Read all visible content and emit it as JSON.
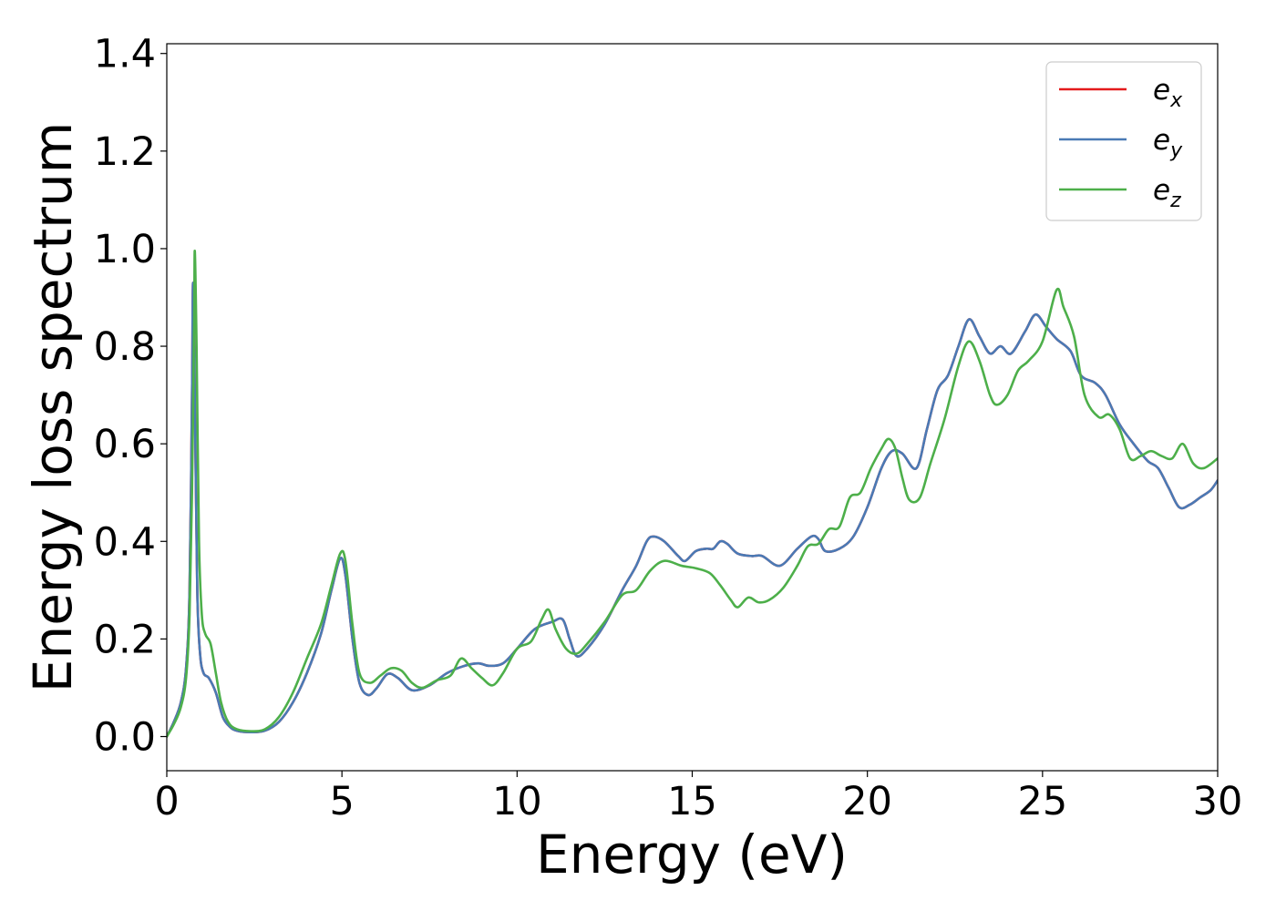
{
  "chart_data": {
    "type": "line",
    "title": "",
    "xlabel": "Energy (eV)",
    "ylabel": "Energy loss spectrum",
    "xlim": [
      0,
      30
    ],
    "ylim": [
      -0.07,
      1.42
    ],
    "x_ticks": [
      "0",
      "5",
      "10",
      "15",
      "20",
      "25",
      "30"
    ],
    "y_ticks": [
      "0.0",
      "0.2",
      "0.4",
      "0.6",
      "0.8",
      "1.0",
      "1.2",
      "1.4"
    ],
    "grid": false,
    "legend_position": "top-right",
    "series": [
      {
        "name": "e_x",
        "legend_base": "e",
        "legend_sub": "x",
        "color": "#e41a1c",
        "points": [
          [
            0,
            0.0
          ],
          [
            0.2,
            0.03
          ],
          [
            0.4,
            0.07
          ],
          [
            0.55,
            0.14
          ],
          [
            0.65,
            0.3
          ],
          [
            0.72,
            0.7
          ],
          [
            0.75,
            0.93
          ],
          [
            0.8,
            0.7
          ],
          [
            0.87,
            0.3
          ],
          [
            0.95,
            0.17
          ],
          [
            1.05,
            0.13
          ],
          [
            1.2,
            0.12
          ],
          [
            1.4,
            0.09
          ],
          [
            1.6,
            0.04
          ],
          [
            1.8,
            0.02
          ],
          [
            2.0,
            0.012
          ],
          [
            2.4,
            0.009
          ],
          [
            2.8,
            0.012
          ],
          [
            3.2,
            0.03
          ],
          [
            3.6,
            0.07
          ],
          [
            4.0,
            0.13
          ],
          [
            4.4,
            0.21
          ],
          [
            4.7,
            0.3
          ],
          [
            4.95,
            0.365
          ],
          [
            5.1,
            0.33
          ],
          [
            5.3,
            0.2
          ],
          [
            5.5,
            0.11
          ],
          [
            5.75,
            0.085
          ],
          [
            6.0,
            0.1
          ],
          [
            6.3,
            0.128
          ],
          [
            6.6,
            0.12
          ],
          [
            7.0,
            0.095
          ],
          [
            7.5,
            0.105
          ],
          [
            8.0,
            0.13
          ],
          [
            8.5,
            0.145
          ],
          [
            8.9,
            0.15
          ],
          [
            9.2,
            0.145
          ],
          [
            9.6,
            0.15
          ],
          [
            10.0,
            0.18
          ],
          [
            10.5,
            0.22
          ],
          [
            11.0,
            0.235
          ],
          [
            11.3,
            0.24
          ],
          [
            11.5,
            0.2
          ],
          [
            11.7,
            0.165
          ],
          [
            12.0,
            0.18
          ],
          [
            12.5,
            0.23
          ],
          [
            13.0,
            0.3
          ],
          [
            13.4,
            0.35
          ],
          [
            13.7,
            0.4
          ],
          [
            13.9,
            0.41
          ],
          [
            14.2,
            0.4
          ],
          [
            14.6,
            0.37
          ],
          [
            14.8,
            0.36
          ],
          [
            15.1,
            0.38
          ],
          [
            15.4,
            0.385
          ],
          [
            15.6,
            0.385
          ],
          [
            15.8,
            0.4
          ],
          [
            16.0,
            0.395
          ],
          [
            16.3,
            0.375
          ],
          [
            16.7,
            0.37
          ],
          [
            17.0,
            0.37
          ],
          [
            17.5,
            0.35
          ],
          [
            18.0,
            0.385
          ],
          [
            18.4,
            0.41
          ],
          [
            18.6,
            0.405
          ],
          [
            18.8,
            0.38
          ],
          [
            19.2,
            0.385
          ],
          [
            19.6,
            0.41
          ],
          [
            20.0,
            0.47
          ],
          [
            20.4,
            0.55
          ],
          [
            20.7,
            0.585
          ],
          [
            21.0,
            0.58
          ],
          [
            21.4,
            0.55
          ],
          [
            21.7,
            0.63
          ],
          [
            22.0,
            0.71
          ],
          [
            22.3,
            0.74
          ],
          [
            22.6,
            0.8
          ],
          [
            22.9,
            0.855
          ],
          [
            23.2,
            0.82
          ],
          [
            23.5,
            0.785
          ],
          [
            23.8,
            0.8
          ],
          [
            24.1,
            0.785
          ],
          [
            24.5,
            0.83
          ],
          [
            24.8,
            0.865
          ],
          [
            25.1,
            0.84
          ],
          [
            25.4,
            0.815
          ],
          [
            25.8,
            0.79
          ],
          [
            26.1,
            0.74
          ],
          [
            26.5,
            0.725
          ],
          [
            26.8,
            0.7
          ],
          [
            27.2,
            0.64
          ],
          [
            27.6,
            0.6
          ],
          [
            28.0,
            0.565
          ],
          [
            28.3,
            0.55
          ],
          [
            28.6,
            0.51
          ],
          [
            28.9,
            0.47
          ],
          [
            29.2,
            0.475
          ],
          [
            29.5,
            0.49
          ],
          [
            29.8,
            0.505
          ],
          [
            30.0,
            0.525
          ]
        ]
      },
      {
        "name": "e_y",
        "legend_base": "e",
        "legend_sub": "y",
        "color": "#4a7ab5",
        "points": [
          [
            0,
            0.0
          ],
          [
            0.2,
            0.03
          ],
          [
            0.4,
            0.07
          ],
          [
            0.55,
            0.14
          ],
          [
            0.65,
            0.3
          ],
          [
            0.72,
            0.7
          ],
          [
            0.75,
            0.93
          ],
          [
            0.8,
            0.7
          ],
          [
            0.87,
            0.3
          ],
          [
            0.95,
            0.17
          ],
          [
            1.05,
            0.13
          ],
          [
            1.2,
            0.12
          ],
          [
            1.4,
            0.09
          ],
          [
            1.6,
            0.04
          ],
          [
            1.8,
            0.02
          ],
          [
            2.0,
            0.012
          ],
          [
            2.4,
            0.009
          ],
          [
            2.8,
            0.012
          ],
          [
            3.2,
            0.03
          ],
          [
            3.6,
            0.07
          ],
          [
            4.0,
            0.13
          ],
          [
            4.4,
            0.21
          ],
          [
            4.7,
            0.3
          ],
          [
            4.95,
            0.365
          ],
          [
            5.1,
            0.33
          ],
          [
            5.3,
            0.2
          ],
          [
            5.5,
            0.11
          ],
          [
            5.75,
            0.085
          ],
          [
            6.0,
            0.1
          ],
          [
            6.3,
            0.128
          ],
          [
            6.6,
            0.12
          ],
          [
            7.0,
            0.095
          ],
          [
            7.5,
            0.105
          ],
          [
            8.0,
            0.13
          ],
          [
            8.5,
            0.145
          ],
          [
            8.9,
            0.15
          ],
          [
            9.2,
            0.145
          ],
          [
            9.6,
            0.15
          ],
          [
            10.0,
            0.18
          ],
          [
            10.5,
            0.22
          ],
          [
            11.0,
            0.235
          ],
          [
            11.3,
            0.24
          ],
          [
            11.5,
            0.2
          ],
          [
            11.7,
            0.165
          ],
          [
            12.0,
            0.18
          ],
          [
            12.5,
            0.23
          ],
          [
            13.0,
            0.3
          ],
          [
            13.4,
            0.35
          ],
          [
            13.7,
            0.4
          ],
          [
            13.9,
            0.41
          ],
          [
            14.2,
            0.4
          ],
          [
            14.6,
            0.37
          ],
          [
            14.8,
            0.36
          ],
          [
            15.1,
            0.38
          ],
          [
            15.4,
            0.385
          ],
          [
            15.6,
            0.385
          ],
          [
            15.8,
            0.4
          ],
          [
            16.0,
            0.395
          ],
          [
            16.3,
            0.375
          ],
          [
            16.7,
            0.37
          ],
          [
            17.0,
            0.37
          ],
          [
            17.5,
            0.35
          ],
          [
            18.0,
            0.385
          ],
          [
            18.4,
            0.41
          ],
          [
            18.6,
            0.405
          ],
          [
            18.8,
            0.38
          ],
          [
            19.2,
            0.385
          ],
          [
            19.6,
            0.41
          ],
          [
            20.0,
            0.47
          ],
          [
            20.4,
            0.55
          ],
          [
            20.7,
            0.585
          ],
          [
            21.0,
            0.58
          ],
          [
            21.4,
            0.55
          ],
          [
            21.7,
            0.63
          ],
          [
            22.0,
            0.71
          ],
          [
            22.3,
            0.74
          ],
          [
            22.6,
            0.8
          ],
          [
            22.9,
            0.855
          ],
          [
            23.2,
            0.82
          ],
          [
            23.5,
            0.785
          ],
          [
            23.8,
            0.8
          ],
          [
            24.1,
            0.785
          ],
          [
            24.5,
            0.83
          ],
          [
            24.8,
            0.865
          ],
          [
            25.1,
            0.84
          ],
          [
            25.4,
            0.815
          ],
          [
            25.8,
            0.79
          ],
          [
            26.1,
            0.74
          ],
          [
            26.5,
            0.725
          ],
          [
            26.8,
            0.7
          ],
          [
            27.2,
            0.64
          ],
          [
            27.6,
            0.6
          ],
          [
            28.0,
            0.565
          ],
          [
            28.3,
            0.55
          ],
          [
            28.6,
            0.51
          ],
          [
            28.9,
            0.47
          ],
          [
            29.2,
            0.475
          ],
          [
            29.5,
            0.49
          ],
          [
            29.8,
            0.505
          ],
          [
            30.0,
            0.525
          ]
        ]
      },
      {
        "name": "e_z",
        "legend_base": "e",
        "legend_sub": "z",
        "color": "#4daf4a",
        "points": [
          [
            0,
            0.0
          ],
          [
            0.2,
            0.025
          ],
          [
            0.4,
            0.06
          ],
          [
            0.55,
            0.12
          ],
          [
            0.65,
            0.25
          ],
          [
            0.72,
            0.5
          ],
          [
            0.78,
            0.85
          ],
          [
            0.8,
            0.995
          ],
          [
            0.85,
            0.8
          ],
          [
            0.92,
            0.4
          ],
          [
            1.0,
            0.25
          ],
          [
            1.1,
            0.21
          ],
          [
            1.25,
            0.19
          ],
          [
            1.4,
            0.13
          ],
          [
            1.55,
            0.07
          ],
          [
            1.75,
            0.03
          ],
          [
            2.0,
            0.015
          ],
          [
            2.4,
            0.011
          ],
          [
            2.8,
            0.015
          ],
          [
            3.2,
            0.04
          ],
          [
            3.6,
            0.09
          ],
          [
            4.0,
            0.16
          ],
          [
            4.4,
            0.23
          ],
          [
            4.7,
            0.31
          ],
          [
            4.95,
            0.375
          ],
          [
            5.1,
            0.36
          ],
          [
            5.3,
            0.23
          ],
          [
            5.5,
            0.13
          ],
          [
            5.8,
            0.11
          ],
          [
            6.1,
            0.125
          ],
          [
            6.4,
            0.14
          ],
          [
            6.7,
            0.135
          ],
          [
            7.0,
            0.11
          ],
          [
            7.3,
            0.1
          ],
          [
            7.7,
            0.115
          ],
          [
            8.1,
            0.125
          ],
          [
            8.4,
            0.16
          ],
          [
            8.7,
            0.14
          ],
          [
            9.0,
            0.12
          ],
          [
            9.3,
            0.105
          ],
          [
            9.6,
            0.13
          ],
          [
            10.0,
            0.18
          ],
          [
            10.4,
            0.195
          ],
          [
            10.7,
            0.24
          ],
          [
            10.9,
            0.26
          ],
          [
            11.1,
            0.22
          ],
          [
            11.4,
            0.18
          ],
          [
            11.7,
            0.17
          ],
          [
            12.0,
            0.19
          ],
          [
            12.5,
            0.235
          ],
          [
            13.0,
            0.29
          ],
          [
            13.4,
            0.3
          ],
          [
            13.8,
            0.34
          ],
          [
            14.2,
            0.36
          ],
          [
            14.7,
            0.35
          ],
          [
            15.1,
            0.345
          ],
          [
            15.5,
            0.335
          ],
          [
            15.8,
            0.31
          ],
          [
            16.1,
            0.28
          ],
          [
            16.3,
            0.265
          ],
          [
            16.6,
            0.285
          ],
          [
            16.9,
            0.275
          ],
          [
            17.2,
            0.28
          ],
          [
            17.6,
            0.305
          ],
          [
            18.0,
            0.35
          ],
          [
            18.3,
            0.39
          ],
          [
            18.6,
            0.395
          ],
          [
            18.9,
            0.425
          ],
          [
            19.2,
            0.43
          ],
          [
            19.5,
            0.49
          ],
          [
            19.8,
            0.5
          ],
          [
            20.1,
            0.55
          ],
          [
            20.4,
            0.59
          ],
          [
            20.6,
            0.61
          ],
          [
            20.8,
            0.59
          ],
          [
            21.0,
            0.53
          ],
          [
            21.2,
            0.485
          ],
          [
            21.5,
            0.49
          ],
          [
            21.8,
            0.56
          ],
          [
            22.2,
            0.65
          ],
          [
            22.6,
            0.76
          ],
          [
            22.9,
            0.81
          ],
          [
            23.2,
            0.77
          ],
          [
            23.5,
            0.7
          ],
          [
            23.7,
            0.68
          ],
          [
            24.0,
            0.7
          ],
          [
            24.3,
            0.75
          ],
          [
            24.6,
            0.77
          ],
          [
            25.0,
            0.81
          ],
          [
            25.4,
            0.915
          ],
          [
            25.6,
            0.88
          ],
          [
            25.9,
            0.82
          ],
          [
            26.2,
            0.7
          ],
          [
            26.6,
            0.655
          ],
          [
            26.9,
            0.66
          ],
          [
            27.2,
            0.63
          ],
          [
            27.5,
            0.57
          ],
          [
            27.8,
            0.575
          ],
          [
            28.1,
            0.585
          ],
          [
            28.4,
            0.575
          ],
          [
            28.7,
            0.57
          ],
          [
            29.0,
            0.6
          ],
          [
            29.3,
            0.56
          ],
          [
            29.6,
            0.55
          ],
          [
            30.0,
            0.57
          ]
        ]
      }
    ]
  }
}
